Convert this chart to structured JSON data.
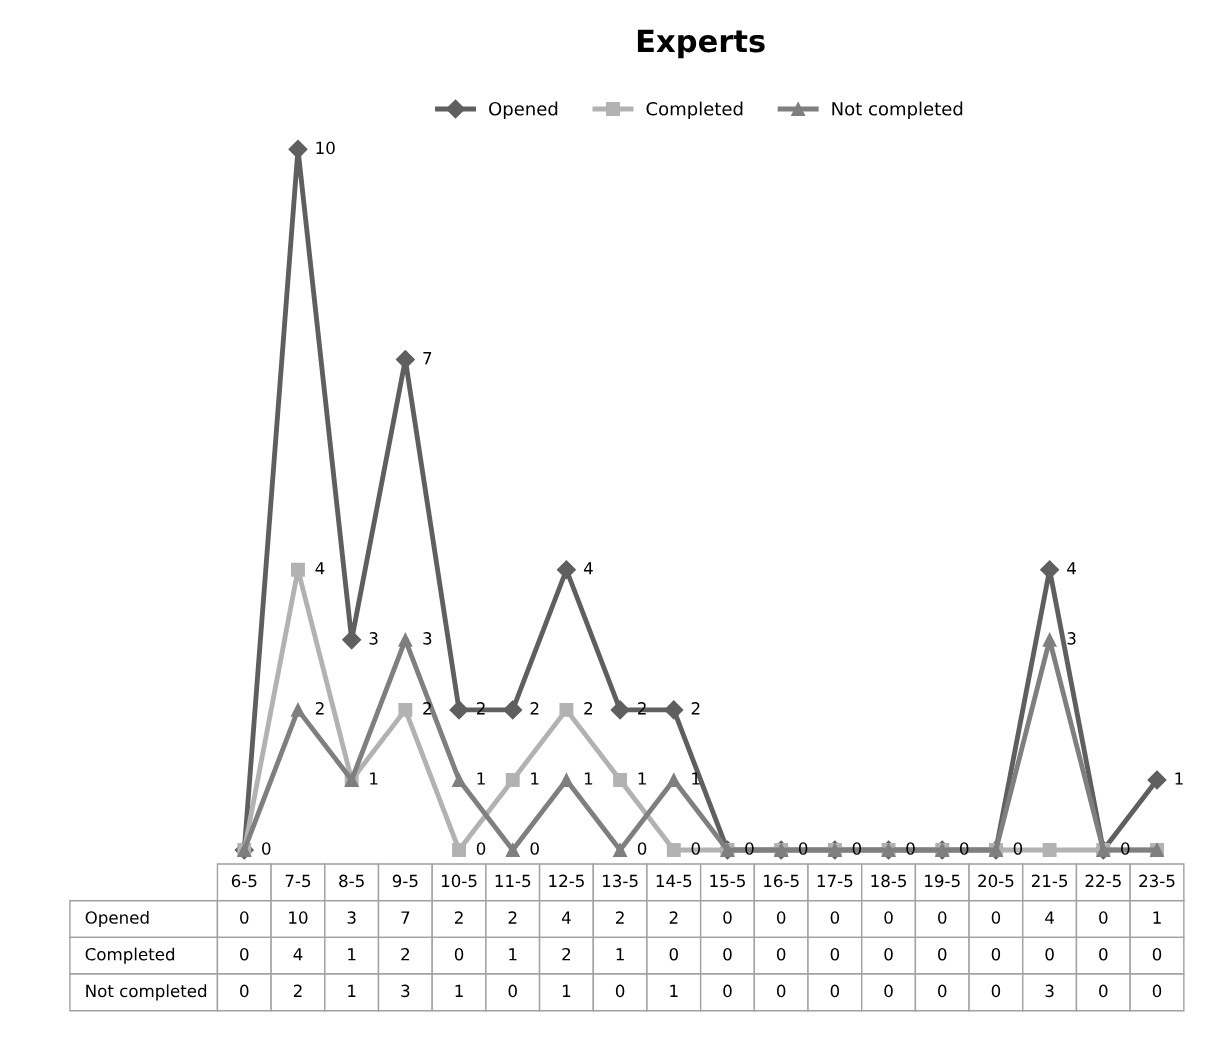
{
  "chart_data": {
    "type": "line",
    "title": "Experts",
    "categories": [
      "6-5",
      "7-5",
      "8-5",
      "9-5",
      "10-5",
      "11-5",
      "12-5",
      "13-5",
      "14-5",
      "15-5",
      "16-5",
      "17-5",
      "18-5",
      "19-5",
      "20-5",
      "21-5",
      "22-5",
      "23-5"
    ],
    "series": [
      {
        "name": "Opened",
        "color": "#5f5f5f",
        "marker": "diamond",
        "values": [
          0,
          10,
          3,
          7,
          2,
          2,
          4,
          2,
          2,
          0,
          0,
          0,
          0,
          0,
          0,
          4,
          0,
          1
        ]
      },
      {
        "name": "Completed",
        "color": "#b2b2b2",
        "marker": "square",
        "values": [
          0,
          4,
          1,
          2,
          0,
          1,
          2,
          1,
          0,
          0,
          0,
          0,
          0,
          0,
          0,
          0,
          0,
          0
        ]
      },
      {
        "name": "Not completed",
        "color": "#7f7f7f",
        "marker": "triangle",
        "values": [
          0,
          2,
          1,
          3,
          1,
          0,
          1,
          0,
          1,
          0,
          0,
          0,
          0,
          0,
          0,
          3,
          0,
          0
        ]
      }
    ],
    "annotations": [
      {
        "text": "0",
        "x": "6-5",
        "y": 0
      },
      {
        "text": "10",
        "x": "7-5",
        "y": 10
      },
      {
        "text": "3",
        "x": "8-5",
        "y": 3
      },
      {
        "text": "7",
        "x": "9-5",
        "y": 7
      },
      {
        "text": "2",
        "x": "10-5",
        "y": 2
      },
      {
        "text": "2",
        "x": "11-5",
        "y": 2
      },
      {
        "text": "4",
        "x": "12-5",
        "y": 4
      },
      {
        "text": "2",
        "x": "13-5",
        "y": 2
      },
      {
        "text": "2",
        "x": "14-5",
        "y": 2
      },
      {
        "text": "0",
        "x": "15-5",
        "y": 0
      },
      {
        "text": "0",
        "x": "16-5",
        "y": 0
      },
      {
        "text": "0",
        "x": "17-5",
        "y": 0
      },
      {
        "text": "0",
        "x": "18-5",
        "y": 0
      },
      {
        "text": "0",
        "x": "19-5",
        "y": 0
      },
      {
        "text": "0",
        "x": "20-5",
        "y": 0
      },
      {
        "text": "4",
        "x": "21-5",
        "y": 4
      },
      {
        "text": "0",
        "x": "22-5",
        "y": 0
      },
      {
        "text": "1",
        "x": "23-5",
        "y": 1
      },
      {
        "text": "4",
        "x": "7-5",
        "y": 4
      },
      {
        "text": "1",
        "x": "8-5",
        "y": 1
      },
      {
        "text": "2",
        "x": "9-5",
        "y": 2
      },
      {
        "text": "0",
        "x": "10-5",
        "y": 0
      },
      {
        "text": "1",
        "x": "11-5",
        "y": 1
      },
      {
        "text": "2",
        "x": "12-5",
        "y": 2
      },
      {
        "text": "1",
        "x": "13-5",
        "y": 1
      },
      {
        "text": "0",
        "x": "14-5",
        "y": 0
      },
      {
        "text": "2",
        "x": "7-5",
        "y": 2
      },
      {
        "text": "3",
        "x": "9-5",
        "y": 3
      },
      {
        "text": "1",
        "x": "10-5",
        "y": 1
      },
      {
        "text": "0",
        "x": "11-5",
        "y": 0
      },
      {
        "text": "1",
        "x": "12-5",
        "y": 1
      },
      {
        "text": "0",
        "x": "13-5",
        "y": 0
      },
      {
        "text": "1",
        "x": "14-5",
        "y": 1
      },
      {
        "text": "3",
        "x": "21-5",
        "y": 3
      }
    ],
    "data_labels": true,
    "legend": "top",
    "grid": false,
    "tick_labels": false,
    "line_style": "solid"
  }
}
